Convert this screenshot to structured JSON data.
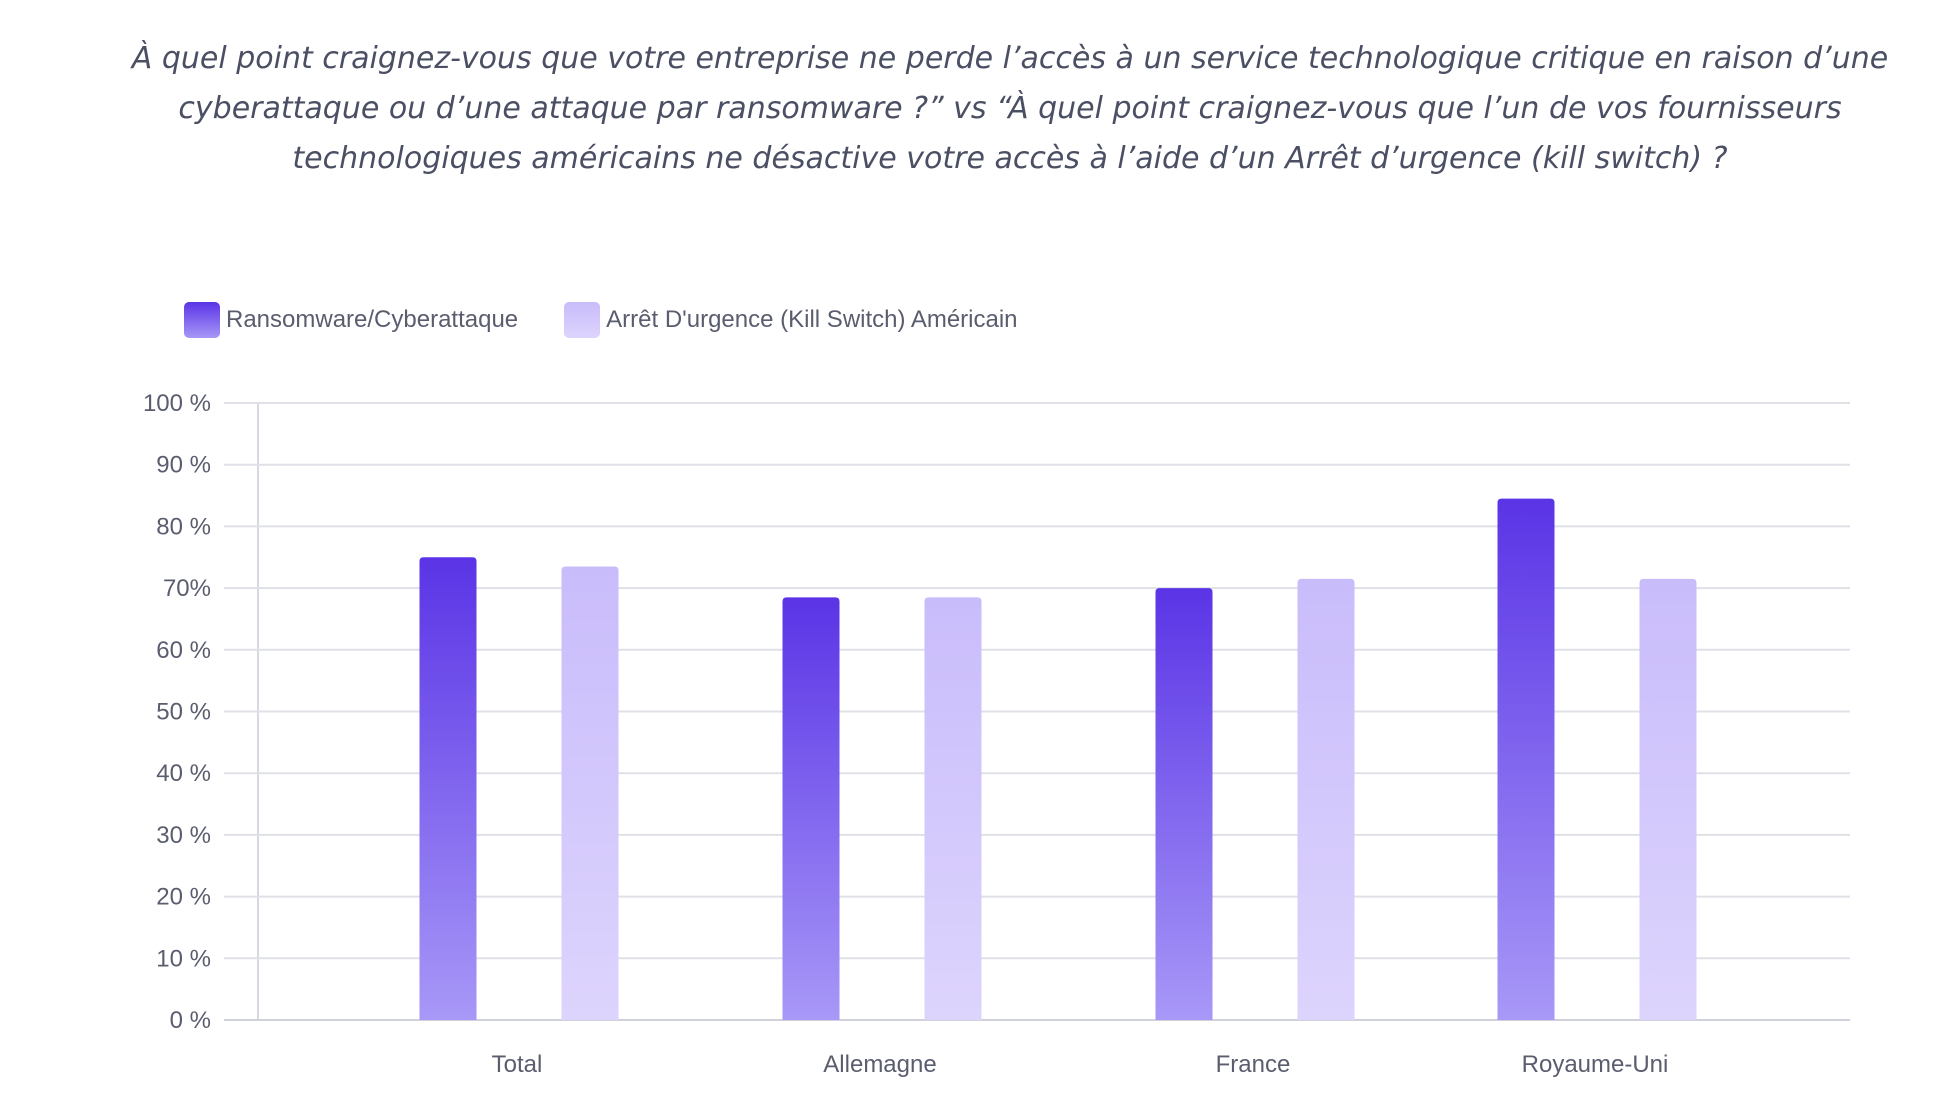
{
  "title": "À quel point craignez-vous que votre entreprise ne perde l’accès à un service technologique critique en raison d’une cyberattaque ou d’une attaque par ransomware ?” vs “À quel point craignez-vous que l’un de vos fournisseurs technologiques américains ne désactive votre accès à l’aide d’un Arrêt d’urgence (kill switch) ?",
  "legend": [
    {
      "label": "Ransomware/Cyberattaque",
      "color_top": "#5a34e6",
      "color_bottom": "#a898f7"
    },
    {
      "label": "Arrêt D'urgence (Kill Switch) Américain",
      "color_top": "#c9bcfb",
      "color_bottom": "#ddd4fd"
    }
  ],
  "chart_data": {
    "type": "bar",
    "title": "À quel point craignez-vous que votre entreprise ne perde l’accès à un service technologique critique en raison d’une cyberattaque ou d’une attaque par ransomware ?” vs “À quel point craignez-vous que l’un de vos fournisseurs technologiques américains ne désactive votre accès à l’aide d’un Arrêt d’urgence (kill switch) ?",
    "categories": [
      "Total",
      "Allemagne",
      "France",
      "Royaume-Uni"
    ],
    "series": [
      {
        "name": "Ransomware/Cyberattaque",
        "values": [
          75,
          68.5,
          70,
          84.5
        ]
      },
      {
        "name": "Arrêt D'urgence (Kill Switch) Américain",
        "values": [
          73.5,
          68.5,
          71.5,
          71.5
        ]
      }
    ],
    "xlabel": "",
    "ylabel": "",
    "ylim": [
      0,
      100
    ],
    "yticks": [
      "0 %",
      "10 %",
      "20 %",
      "30 %",
      "40 %",
      "50 %",
      "60 %",
      "70%",
      "80 %",
      "90 %",
      "100 %"
    ],
    "grid": true,
    "legend_position": "top-left"
  }
}
